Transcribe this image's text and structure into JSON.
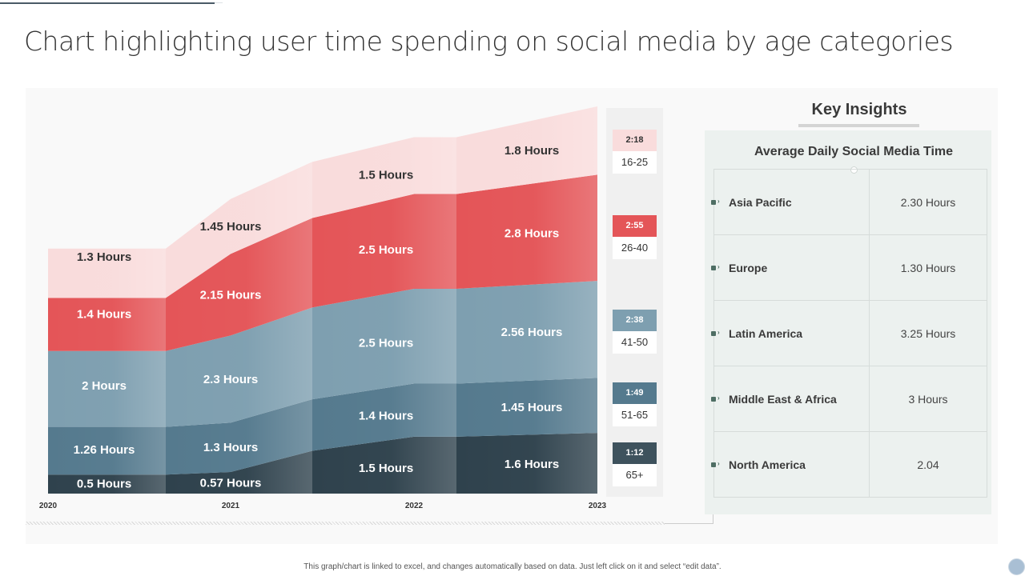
{
  "title": "Chart highlighting user time spending on social media by age categories",
  "footer": "This graph/chart is linked to excel, and changes automatically based on data. Just left click on it and select “edit data”.",
  "chart_data": {
    "type": "area",
    "stacked": true,
    "title": "Chart highlighting user time spending on social media by age categories",
    "xlabel": "",
    "ylabel": "",
    "x": [
      "2020",
      "2021",
      "2022",
      "2023"
    ],
    "unit": "Hours",
    "series": [
      {
        "name": "65+",
        "values": [
          0.5,
          0.57,
          1.5,
          1.6
        ],
        "labels": [
          "0.5 Hours",
          "0.57 Hours",
          "1.5 Hours",
          "1.6 Hours"
        ],
        "color": "#2f424d",
        "label_color": "#ffffff"
      },
      {
        "name": "51-65",
        "values": [
          1.26,
          1.3,
          1.4,
          1.45
        ],
        "labels": [
          "1.26 Hours",
          "1.3 Hours",
          "1.4 Hours",
          "1.45 Hours"
        ],
        "color": "#557a8e",
        "label_color": "#ffffff"
      },
      {
        "name": "41-50",
        "values": [
          2,
          2.3,
          2.5,
          2.56
        ],
        "labels": [
          "2 Hours",
          "2.3 Hours",
          "2.5 Hours",
          "2.56 Hours"
        ],
        "color": "#7e9fb0",
        "label_color": "#ffffff"
      },
      {
        "name": "26-40",
        "values": [
          1.4,
          2.15,
          2.5,
          2.8
        ],
        "labels": [
          "1.4 Hours",
          "2.15 Hours",
          "2.5 Hours",
          "2.8 Hours"
        ],
        "color": "#e45558",
        "label_color": "#ffffff"
      },
      {
        "name": "16-25",
        "values": [
          1.3,
          1.45,
          1.5,
          1.8
        ],
        "labels": [
          "1.3 Hours",
          "1.45 Hours",
          "1.5 Hours",
          "1.8 Hours"
        ],
        "color": "#f9dcdc",
        "label_color": "#333333"
      }
    ],
    "legend": {
      "placement": "right",
      "items": [
        {
          "age": "16-25",
          "time": "2:18",
          "color": "#f9dcdc",
          "text_color": "#333333"
        },
        {
          "age": "26-40",
          "time": "2:55",
          "color": "#e45558",
          "text_color": "#ffffff"
        },
        {
          "age": "41-50",
          "time": "2:38",
          "color": "#7e9fb0",
          "text_color": "#ffffff"
        },
        {
          "age": "51-65",
          "time": "1:49",
          "color": "#557a8e",
          "text_color": "#ffffff"
        },
        {
          "age": "65+",
          "time": "1:12",
          "color": "#3e525d",
          "text_color": "#ffffff"
        }
      ]
    },
    "grid": false
  },
  "key_insights": {
    "title": "Key Insights",
    "subtitle": "Average Daily Social Media Time",
    "rows": [
      {
        "region": "Asia Pacific",
        "value": "2.30 Hours"
      },
      {
        "region": "Europe",
        "value": "1.30 Hours"
      },
      {
        "region": "Latin America",
        "value": "3.25 Hours"
      },
      {
        "region": "Middle East & Africa",
        "value": "3 Hours"
      },
      {
        "region": "North America",
        "value": "2.04"
      }
    ]
  }
}
